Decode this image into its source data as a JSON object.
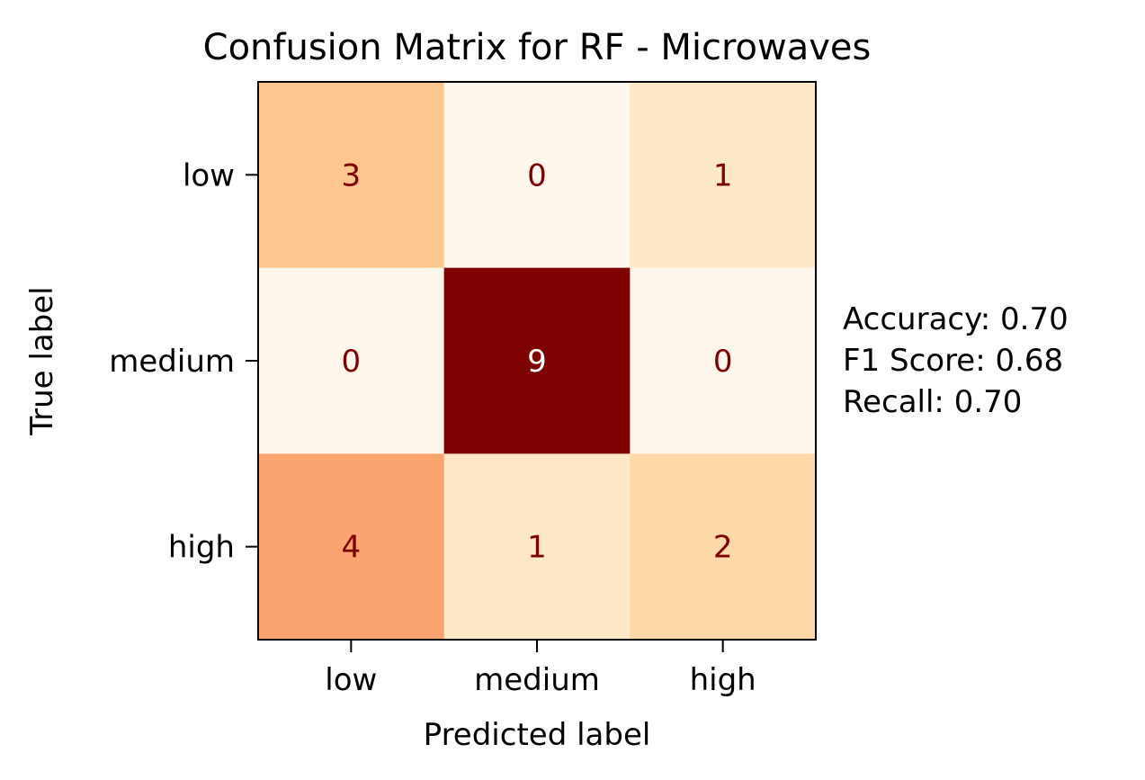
{
  "chart_data": {
    "type": "heatmap",
    "title": "Confusion Matrix for RF - Microwaves",
    "xlabel": "Predicted label",
    "ylabel": "True label",
    "x_categories": [
      "low",
      "medium",
      "high"
    ],
    "y_categories": [
      "low",
      "medium",
      "high"
    ],
    "values": [
      [
        3,
        0,
        1
      ],
      [
        0,
        9,
        0
      ],
      [
        4,
        1,
        2
      ]
    ],
    "colormap": "OrRd",
    "value_range": [
      0,
      9
    ],
    "colorbar": false,
    "grid": false,
    "text_color_light": "#7f0000",
    "text_color_dark": "#ffffff",
    "cell_colors": {
      "0": "#fff7ec",
      "1": "#fee8c8",
      "2": "#fdd9a7",
      "3": "#fdc68e",
      "4": "#fca46f",
      "9": "#7f0000"
    }
  },
  "metrics": {
    "accuracy": "Accuracy: 0.70",
    "f1": "F1 Score: 0.68",
    "recall": "Recall: 0.70"
  }
}
